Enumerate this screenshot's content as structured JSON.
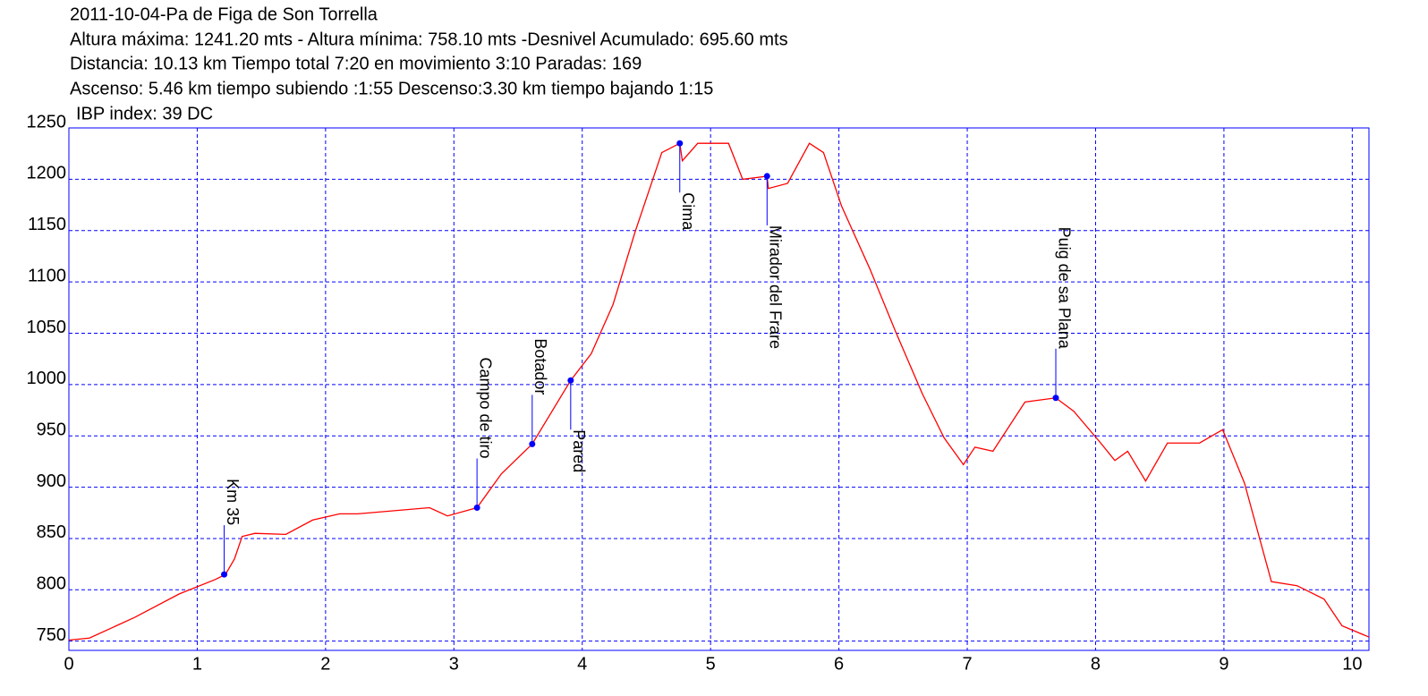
{
  "chart_data": {
    "type": "line",
    "title": "2011-10-04-Pa de Figa de Son Torrella",
    "notes": [
      "Altura máxima: 1241.20 mts - Altura mínima: 758.10 mts -Desnivel Acumulado: 695.60 mts",
      "Distancia: 10.13 km  Tiempo total 7:20  en movimiento 3:10 Paradas: 169",
      "Ascenso: 5.46 km  tiempo subiendo :1:55  Descenso:3.30 km tiempo bajando 1:15",
      "IBP index: 39 DC"
    ],
    "x": [
      0,
      0.16,
      0.51,
      0.86,
      1.14,
      1.22,
      1.29,
      1.35,
      1.45,
      1.69,
      1.9,
      2.11,
      2.25,
      2.81,
      2.95,
      3.18,
      3.37,
      3.61,
      3.91,
      4.07,
      4.24,
      4.41,
      4.62,
      4.76,
      4.78,
      4.9,
      5.14,
      5.25,
      5.44,
      5.45,
      5.6,
      5.77,
      5.88,
      6.02,
      6.24,
      6.44,
      6.65,
      6.82,
      6.97,
      7.06,
      7.2,
      7.45,
      7.69,
      7.83,
      8.04,
      8.15,
      8.25,
      8.39,
      8.56,
      8.81,
      8.99,
      9.16,
      9.37,
      9.57,
      9.78,
      9.92,
      10.13
    ],
    "values": [
      751,
      753,
      773,
      796,
      810,
      815,
      830,
      852,
      855,
      854,
      868,
      874,
      874,
      880,
      872,
      880,
      913,
      942,
      1004,
      1030,
      1078,
      1148,
      1226,
      1235,
      1218,
      1235,
      1235,
      1200,
      1203,
      1191,
      1196,
      1235,
      1226,
      1174,
      1113,
      1052,
      991,
      948,
      922,
      939,
      935,
      983,
      987,
      974,
      943,
      926,
      935,
      906,
      943,
      943,
      956,
      904,
      808,
      804,
      791,
      765,
      754
    ],
    "color": "#ff0000",
    "waypoints": [
      {
        "label": "Km 35",
        "x": 1.21,
        "y": 815,
        "position": "above"
      },
      {
        "label": "Campo de tiro",
        "x": 3.18,
        "y": 880,
        "position": "above"
      },
      {
        "label": "Botador",
        "x": 3.61,
        "y": 942,
        "position": "above"
      },
      {
        "label": "Pared",
        "x": 3.91,
        "y": 1004,
        "position": "below"
      },
      {
        "label": "Cima",
        "x": 4.76,
        "y": 1235,
        "position": "below"
      },
      {
        "label": "Mirador del Frare",
        "x": 5.44,
        "y": 1203,
        "position": "below"
      },
      {
        "label": "Puig de sa Plana",
        "x": 7.69,
        "y": 987,
        "position": "above"
      }
    ],
    "waypoint_color": "#0000ff",
    "xlim": [
      0,
      10.13
    ],
    "ylim": [
      741,
      1250
    ],
    "xticks": [
      0,
      1,
      2,
      3,
      4,
      5,
      6,
      7,
      8,
      9,
      10
    ],
    "yticks": [
      750,
      800,
      850,
      900,
      950,
      1000,
      1050,
      1100,
      1150,
      1200,
      1250
    ],
    "grid": true
  }
}
